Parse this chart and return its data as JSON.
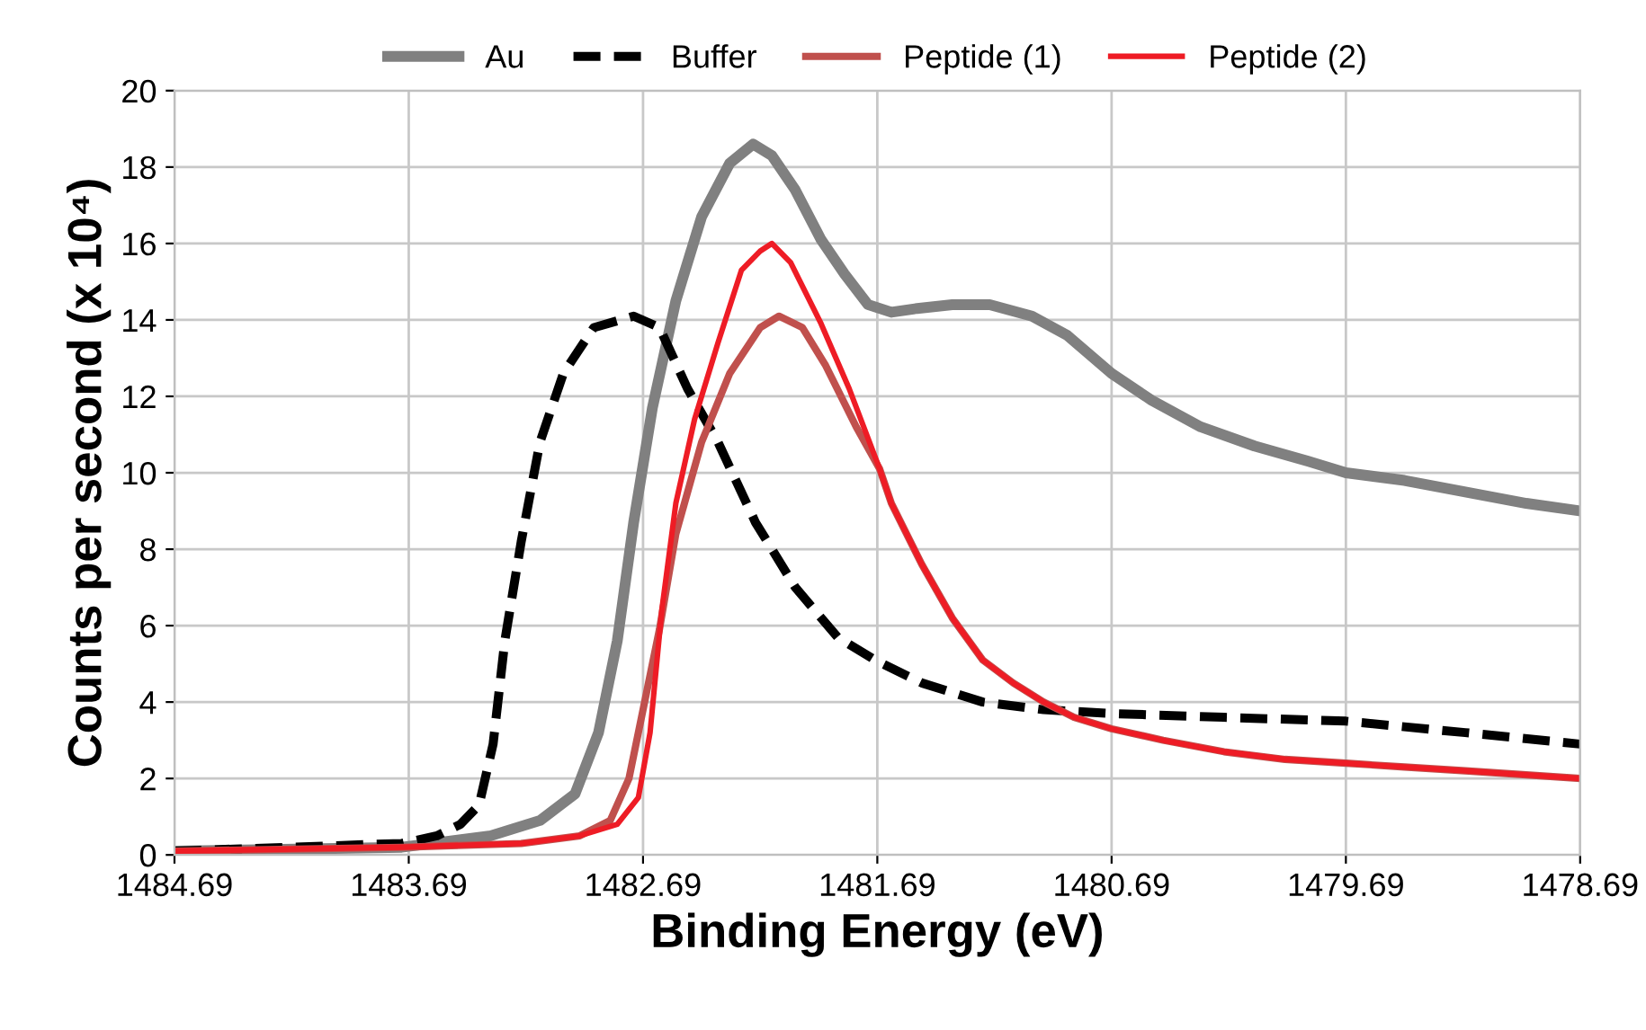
{
  "chart_data": {
    "type": "line",
    "xlabel": "Binding Energy (eV)",
    "ylabel": "Counts per second (x 10⁴)",
    "xlim": [
      1484.69,
      1478.69
    ],
    "xticks": [
      1484.69,
      1483.69,
      1482.69,
      1481.69,
      1480.69,
      1479.69,
      1478.69
    ],
    "ylim": [
      0,
      20
    ],
    "yticks": [
      0,
      2,
      4,
      6,
      8,
      10,
      12,
      14,
      16,
      18,
      20
    ],
    "grid": true,
    "legend": "top",
    "marker": "none",
    "series": [
      {
        "name": "Au",
        "color": "#808080",
        "line_style": "solid",
        "x": [
          1484.69,
          1483.72,
          1483.34,
          1483.13,
          1482.98,
          1482.88,
          1482.8,
          1482.73,
          1482.65,
          1482.55,
          1482.44,
          1482.32,
          1482.22,
          1482.14,
          1482.04,
          1481.93,
          1481.83,
          1481.73,
          1481.63,
          1481.52,
          1481.37,
          1481.21,
          1481.03,
          1480.88,
          1480.69,
          1480.52,
          1480.31,
          1480.08,
          1479.85,
          1479.69,
          1479.44,
          1479.18,
          1478.92,
          1478.69
        ],
        "values": [
          0.1,
          0.2,
          0.5,
          0.9,
          1.6,
          3.2,
          5.6,
          8.7,
          11.7,
          14.5,
          16.7,
          18.1,
          18.6,
          18.3,
          17.4,
          16.1,
          15.2,
          14.4,
          14.2,
          14.3,
          14.4,
          14.4,
          14.1,
          13.6,
          12.6,
          11.9,
          11.2,
          10.7,
          10.3,
          10.0,
          9.8,
          9.5,
          9.2,
          9.0
        ]
      },
      {
        "name": "Buffer",
        "color": "#000000",
        "line_style": "dashed",
        "x": [
          1484.69,
          1483.72,
          1483.57,
          1483.47,
          1483.39,
          1483.33,
          1483.28,
          1483.21,
          1483.13,
          1483.03,
          1482.9,
          1482.73,
          1482.62,
          1482.5,
          1482.37,
          1482.21,
          1482.04,
          1481.86,
          1481.7,
          1481.5,
          1481.24,
          1480.98,
          1480.69,
          1480.21,
          1479.69,
          1479.18,
          1478.69
        ],
        "values": [
          0.1,
          0.3,
          0.5,
          0.8,
          1.3,
          2.9,
          5.6,
          8.2,
          10.8,
          12.6,
          13.8,
          14.1,
          13.8,
          12.2,
          10.8,
          8.7,
          7.0,
          5.7,
          5.1,
          4.5,
          4.0,
          3.8,
          3.7,
          3.6,
          3.5,
          3.2,
          2.9
        ]
      },
      {
        "name": "Peptide (1)",
        "color": "#c0504d",
        "line_style": "solid",
        "x": [
          1484.69,
          1483.72,
          1483.21,
          1482.96,
          1482.83,
          1482.75,
          1482.7,
          1482.62,
          1482.55,
          1482.44,
          1482.32,
          1482.19,
          1482.11,
          1482.01,
          1481.91,
          1481.78,
          1481.68,
          1481.63,
          1481.5,
          1481.37,
          1481.24,
          1481.11,
          1480.98,
          1480.85,
          1480.69,
          1480.47,
          1480.21,
          1479.95,
          1479.69,
          1479.44,
          1479.18,
          1478.69
        ],
        "values": [
          0.1,
          0.2,
          0.3,
          0.5,
          0.9,
          2.0,
          3.5,
          5.9,
          8.4,
          10.8,
          12.6,
          13.8,
          14.1,
          13.8,
          12.8,
          11.2,
          10.1,
          9.2,
          7.6,
          6.2,
          5.1,
          4.5,
          4.0,
          3.6,
          3.3,
          3.0,
          2.7,
          2.5,
          2.4,
          2.3,
          2.2,
          2.0
        ]
      },
      {
        "name": "Peptide (2)",
        "color": "#ee1c25",
        "line_style": "solid",
        "x": [
          1484.69,
          1483.72,
          1483.21,
          1482.96,
          1482.8,
          1482.71,
          1482.66,
          1482.61,
          1482.55,
          1482.47,
          1482.37,
          1482.27,
          1482.19,
          1482.14,
          1482.06,
          1481.93,
          1481.81,
          1481.68,
          1481.63,
          1481.5,
          1481.37,
          1481.24,
          1481.11,
          1480.98,
          1480.85,
          1480.69,
          1480.47,
          1480.21,
          1479.95,
          1479.69,
          1479.44,
          1479.18,
          1478.69
        ],
        "values": [
          0.1,
          0.2,
          0.3,
          0.5,
          0.8,
          1.5,
          3.2,
          6.4,
          9.2,
          11.4,
          13.4,
          15.3,
          15.8,
          16.0,
          15.5,
          13.9,
          12.2,
          10.1,
          9.2,
          7.6,
          6.2,
          5.1,
          4.5,
          4.0,
          3.6,
          3.3,
          3.0,
          2.7,
          2.5,
          2.4,
          2.3,
          2.2,
          2.0
        ]
      }
    ]
  }
}
